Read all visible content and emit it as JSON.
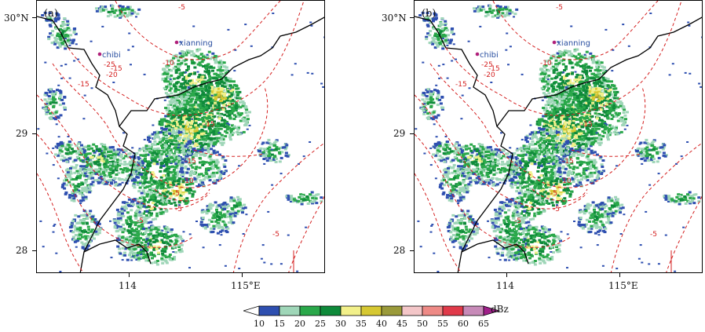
{
  "panels": [
    {
      "label": "(a)",
      "lat_labels": [
        "30°N",
        "29",
        "28"
      ],
      "lon_labels": [
        "114",
        "115°E"
      ],
      "cities": [
        {
          "name": "chibi",
          "color": "#2a4fa0",
          "marker_color": "#b0207a"
        },
        {
          "name": "xianning",
          "color": "#2a4fa0",
          "marker_color": "#b0207a"
        }
      ],
      "contour_labels": [
        "-5",
        "-10",
        "-15",
        "-20",
        "-25",
        "-15",
        "-15",
        "-10",
        "-5",
        "-5",
        "-5",
        "-15",
        "-5"
      ]
    },
    {
      "label": "(b)",
      "lat_labels": [
        "30°N",
        "29",
        "28"
      ],
      "lon_labels": [
        "114",
        "115°E"
      ],
      "cities": [
        {
          "name": "chibi",
          "color": "#2a4fa0",
          "marker_color": "#b0207a"
        },
        {
          "name": "xianning",
          "color": "#2a4fa0",
          "marker_color": "#b0207a"
        }
      ],
      "contour_labels": [
        "-5",
        "-10",
        "-15",
        "-20",
        "-25",
        "-15",
        "-15",
        "-10",
        "-5",
        "-5",
        "-5",
        "-15",
        "-5"
      ]
    }
  ],
  "colorbar": {
    "unit": "dBz",
    "ticks": [
      "10",
      "15",
      "20",
      "25",
      "30",
      "35",
      "40",
      "45",
      "50",
      "55",
      "60",
      "65"
    ],
    "colors": [
      "#2e4fb0",
      "#9fd6b8",
      "#2aa84a",
      "#0e8a3a",
      "#f2f08a",
      "#d6c832",
      "#9a9a3a",
      "#f3c6c8",
      "#ee8a86",
      "#e03a4a",
      "#c78ab8"
    ],
    "under_color": "#ffffff",
    "over_color": "#a0208a"
  },
  "styles": {
    "contour_color": "#d42020",
    "boundary_color": "#000000"
  }
}
